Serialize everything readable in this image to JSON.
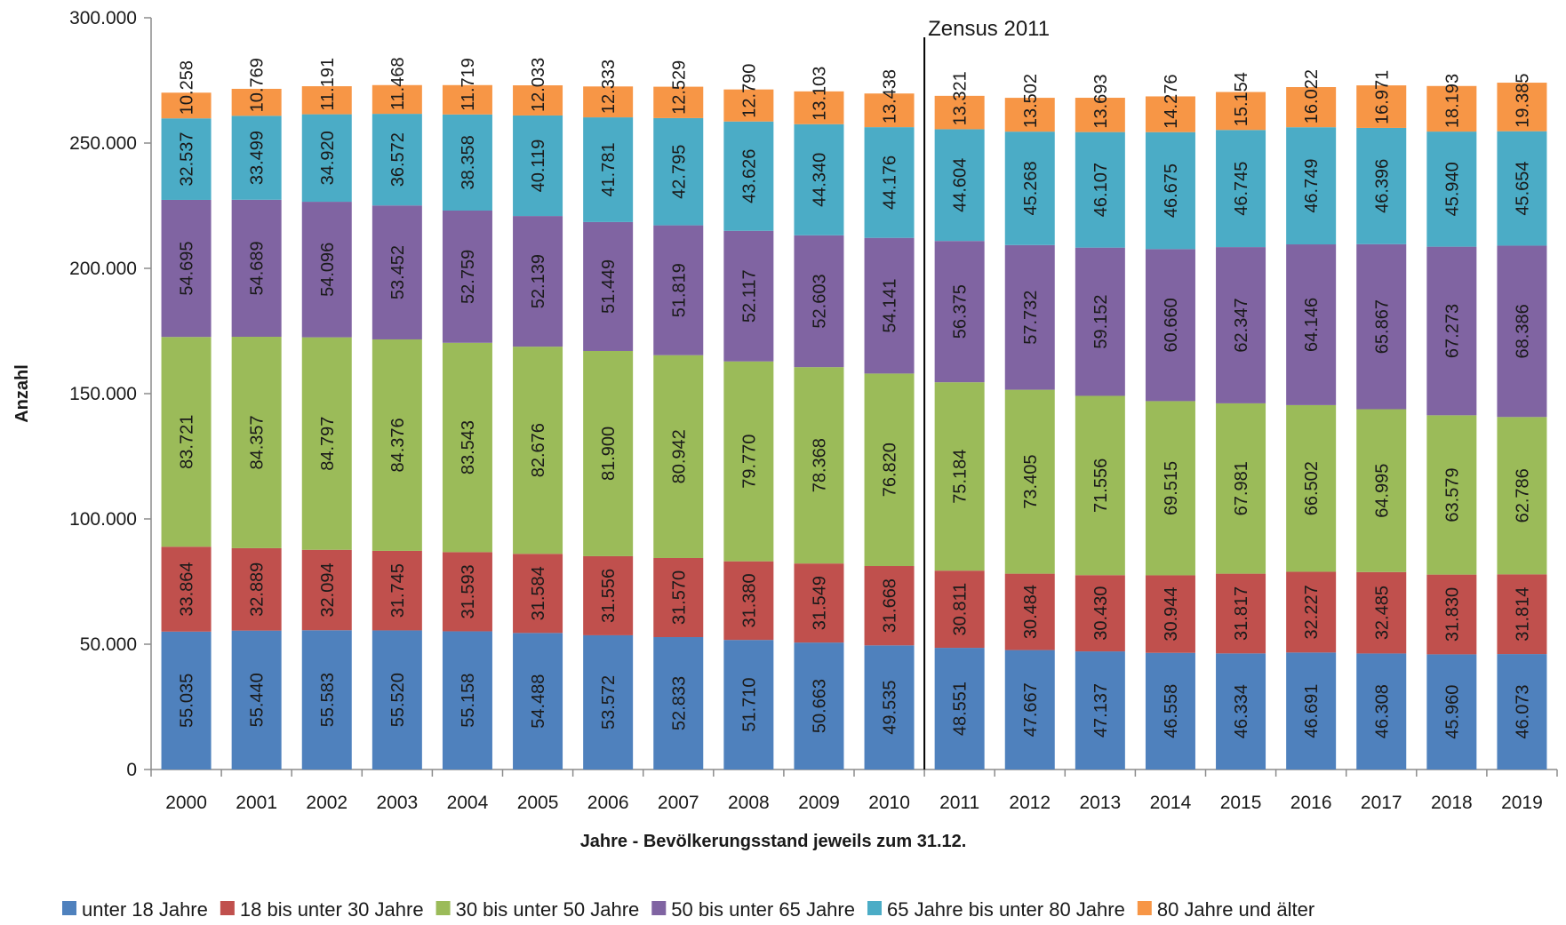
{
  "chart_data": {
    "type": "bar",
    "stacked": true,
    "xlabel": "Jahre - Bevölkerungsstand jeweils zum 31.12.",
    "ylabel": "Anzahl",
    "ylim": [
      0,
      300000
    ],
    "yticks": [
      0,
      50000,
      100000,
      150000,
      200000,
      250000,
      300000
    ],
    "ytick_labels": [
      "0",
      "50.000",
      "100.000",
      "150.000",
      "200.000",
      "250.000",
      "300.000"
    ],
    "categories": [
      "2000",
      "2001",
      "2002",
      "2003",
      "2004",
      "2005",
      "2006",
      "2007",
      "2008",
      "2009",
      "2010",
      "2011",
      "2012",
      "2013",
      "2014",
      "2015",
      "2016",
      "2017",
      "2018",
      "2019"
    ],
    "series": [
      {
        "name": "unter 18 Jahre",
        "color": "#4f81bd",
        "values": [
          55035,
          55440,
          55583,
          55520,
          55158,
          54488,
          53572,
          52833,
          51710,
          50663,
          49535,
          48551,
          47667,
          47137,
          46558,
          46334,
          46691,
          46308,
          45960,
          46073
        ],
        "labels": [
          "55.035",
          "55.440",
          "55.583",
          "55.520",
          "55.158",
          "54.488",
          "53.572",
          "52.833",
          "51.710",
          "50.663",
          "49.535",
          "48.551",
          "47.667",
          "47.137",
          "46.558",
          "46.334",
          "46.691",
          "46.308",
          "45.960",
          "46.073"
        ]
      },
      {
        "name": "18 bis unter 30 Jahre",
        "color": "#c0504d",
        "values": [
          33864,
          32889,
          32094,
          31745,
          31593,
          31584,
          31556,
          31570,
          31380,
          31549,
          31668,
          30811,
          30484,
          30430,
          30944,
          31817,
          32227,
          32485,
          31830,
          31814
        ],
        "labels": [
          "33.864",
          "32.889",
          "32.094",
          "31.745",
          "31.593",
          "31.584",
          "31.556",
          "31.570",
          "31.380",
          "31.549",
          "31.668",
          "30.811",
          "30.484",
          "30.430",
          "30.944",
          "31.817",
          "32.227",
          "32.485",
          "31.830",
          "31.814"
        ]
      },
      {
        "name": "30 bis unter 50 Jahre",
        "color": "#9bbb59",
        "values": [
          83721,
          84357,
          84797,
          84376,
          83543,
          82676,
          81900,
          80942,
          79770,
          78368,
          76820,
          75184,
          73405,
          71556,
          69515,
          67981,
          66502,
          64995,
          63579,
          62786
        ],
        "labels": [
          "83.721",
          "84.357",
          "84.797",
          "84.376",
          "83.543",
          "82.676",
          "81.900",
          "80.942",
          "79.770",
          "78.368",
          "76.820",
          "75.184",
          "73.405",
          "71.556",
          "69.515",
          "67.981",
          "66.502",
          "64.995",
          "63.579",
          "62.786"
        ]
      },
      {
        "name": "50 bis unter 65 Jahre",
        "color": "#8064a2",
        "values": [
          54695,
          54689,
          54096,
          53452,
          52759,
          52139,
          51449,
          51819,
          52117,
          52603,
          54141,
          56375,
          57732,
          59152,
          60660,
          62347,
          64146,
          65867,
          67273,
          68386
        ],
        "labels": [
          "54.695",
          "54.689",
          "54.096",
          "53.452",
          "52.759",
          "52.139",
          "51.449",
          "51.819",
          "52.117",
          "52.603",
          "54.141",
          "56.375",
          "57.732",
          "59.152",
          "60.660",
          "62.347",
          "64.146",
          "65.867",
          "67.273",
          "68.386"
        ]
      },
      {
        "name": "65 Jahre bis unter 80 Jahre",
        "color": "#4bacc6",
        "values": [
          32537,
          33499,
          34920,
          36572,
          38358,
          40119,
          41781,
          42795,
          43626,
          44340,
          44176,
          44604,
          45268,
          46107,
          46675,
          46745,
          46749,
          46396,
          45940,
          45654
        ],
        "labels": [
          "32.537",
          "33.499",
          "34.920",
          "36.572",
          "38.358",
          "40.119",
          "41.781",
          "42.795",
          "43.626",
          "44.340",
          "44.176",
          "44.604",
          "45.268",
          "46.107",
          "46.675",
          "46.745",
          "46.749",
          "46.396",
          "45.940",
          "45.654"
        ]
      },
      {
        "name": "80 Jahre und älter",
        "color": "#f79646",
        "values": [
          10258,
          10769,
          11191,
          11468,
          11719,
          12033,
          12333,
          12529,
          12790,
          13103,
          13438,
          13321,
          13502,
          13693,
          14276,
          15154,
          16022,
          16971,
          18193,
          19385
        ],
        "labels": [
          "10.258",
          "10.769",
          "11.191",
          "11.468",
          "11.719",
          "12.033",
          "12.333",
          "12.529",
          "12.790",
          "13.103",
          "13.438",
          "13.321",
          "13.502",
          "13.693",
          "14.276",
          "15.154",
          "16.022",
          "16.971",
          "18.193",
          "19.385"
        ]
      }
    ],
    "annotations": [
      {
        "text": "Zensus 2011",
        "between": [
          "2010",
          "2011"
        ]
      }
    ],
    "legend_position": "bottom",
    "grid": false
  }
}
